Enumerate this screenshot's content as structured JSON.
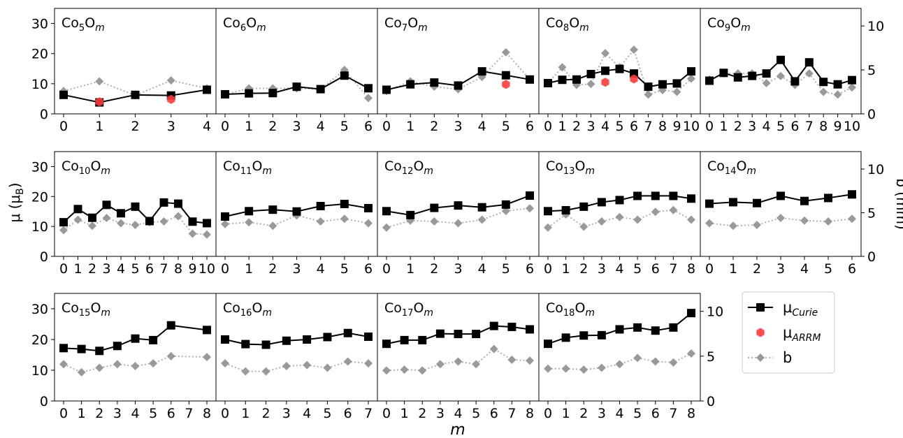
{
  "figure": {
    "xlabel": "m",
    "ylabel_left": "μ (μ",
    "ylabel_left_sub": "B",
    "ylabel_left_close": ")",
    "ylabel_right": "b (mm)"
  },
  "legend": {
    "placement": "right",
    "items": [
      {
        "symbol": "curie",
        "label": "μ",
        "sub": "Curie"
      },
      {
        "symbol": "arrm",
        "label": "μ",
        "sub": "ARRM"
      },
      {
        "symbol": "b",
        "label": "b",
        "sub": ""
      }
    ]
  },
  "colors": {
    "curie": "#000000",
    "arrm": "#ff3b3b",
    "b": "#999999",
    "b_line": "#b0b0b0"
  },
  "axes": {
    "left_ylim": [
      0,
      35
    ],
    "left_ticks": [
      0,
      10,
      20,
      30
    ],
    "right_ylim": [
      0,
      12
    ],
    "right_ticks": [
      0,
      5,
      10
    ]
  },
  "chart_data": [
    {
      "type": "line",
      "title_base": "Co",
      "n": "5",
      "mid": "O",
      "m_sym": "m",
      "x": [
        0,
        1,
        2,
        3,
        4
      ],
      "series": [
        {
          "key": "curie",
          "values": [
            6.3,
            3.8,
            6.3,
            6.1,
            8.0
          ]
        },
        {
          "key": "arrm",
          "points": [
            [
              1,
              4.0
            ],
            [
              3,
              4.8
            ]
          ]
        },
        {
          "key": "b",
          "values": [
            2.6,
            3.7,
            2.1,
            3.8,
            2.9
          ]
        }
      ]
    },
    {
      "type": "line",
      "title_base": "Co",
      "n": "6",
      "mid": "O",
      "m_sym": "m",
      "x": [
        0,
        1,
        2,
        3,
        4,
        5,
        6
      ],
      "series": [
        {
          "key": "curie",
          "values": [
            6.5,
            6.8,
            6.9,
            9.0,
            8.2,
            12.7,
            8.5
          ]
        },
        {
          "key": "b",
          "values": [
            2.2,
            2.9,
            2.9,
            2.9,
            2.8,
            5.0,
            1.8
          ]
        }
      ]
    },
    {
      "type": "line",
      "title_base": "Co",
      "n": "7",
      "mid": "O",
      "m_sym": "m",
      "x": [
        0,
        1,
        2,
        3,
        4,
        5,
        6
      ],
      "series": [
        {
          "key": "curie",
          "values": [
            8.0,
            9.8,
            10.4,
            9.4,
            14.1,
            12.8,
            11.4
          ]
        },
        {
          "key": "arrm",
          "points": [
            [
              5,
              9.8
            ]
          ]
        },
        {
          "key": "b",
          "values": [
            2.6,
            3.7,
            3.1,
            2.8,
            4.2,
            7.0,
            3.9
          ]
        }
      ]
    },
    {
      "type": "line",
      "title_base": "Co",
      "n": "8",
      "mid": "O",
      "m_sym": "m",
      "x": [
        0,
        1,
        2,
        3,
        4,
        5,
        6,
        7,
        8,
        9,
        10
      ],
      "series": [
        {
          "key": "curie",
          "values": [
            10.2,
            11.3,
            11.4,
            13.2,
            14.3,
            14.9,
            13.4,
            9.0,
            9.8,
            10.1,
            14.1
          ]
        },
        {
          "key": "arrm",
          "points": [
            [
              4,
              10.5
            ],
            [
              6,
              11.6
            ]
          ]
        },
        {
          "key": "b",
          "values": [
            3.5,
            5.3,
            3.3,
            3.4,
            6.9,
            5.3,
            7.3,
            2.2,
            2.7,
            2.5,
            4.0
          ]
        }
      ]
    },
    {
      "type": "line",
      "title_base": "Co",
      "n": "9",
      "mid": "O",
      "m_sym": "m",
      "x": [
        0,
        1,
        2,
        3,
        4,
        5,
        6,
        7,
        8,
        9,
        10
      ],
      "series": [
        {
          "key": "curie",
          "values": [
            11.0,
            13.6,
            12.1,
            12.6,
            13.4,
            17.9,
            10.8,
            17.1,
            10.6,
            9.8,
            11.2
          ]
        },
        {
          "key": "b",
          "values": [
            3.9,
            4.6,
            4.6,
            4.6,
            3.5,
            4.3,
            3.3,
            4.6,
            2.5,
            2.2,
            3.0
          ]
        }
      ]
    },
    {
      "type": "line",
      "title_base": "Co",
      "n": "10",
      "mid": "O",
      "m_sym": "m",
      "x": [
        0,
        1,
        2,
        3,
        4,
        5,
        6,
        7,
        8,
        9,
        10
      ],
      "series": [
        {
          "key": "curie",
          "values": [
            11.4,
            15.8,
            12.9,
            17.2,
            14.4,
            16.6,
            11.8,
            18.0,
            17.6,
            11.6,
            11.1
          ]
        },
        {
          "key": "b",
          "values": [
            3.0,
            4.2,
            3.5,
            4.4,
            3.8,
            3.6,
            3.9,
            4.0,
            4.6,
            2.6,
            2.5
          ]
        }
      ]
    },
    {
      "type": "line",
      "title_base": "Co",
      "n": "11",
      "mid": "O",
      "m_sym": "m",
      "x": [
        0,
        1,
        2,
        3,
        4,
        5,
        6
      ],
      "series": [
        {
          "key": "curie",
          "values": [
            13.3,
            15.1,
            15.6,
            15.0,
            16.8,
            17.5,
            16.1
          ]
        },
        {
          "key": "b",
          "values": [
            3.7,
            3.9,
            3.5,
            4.7,
            4.0,
            4.3,
            3.8
          ]
        }
      ]
    },
    {
      "type": "line",
      "title_base": "Co",
      "n": "12",
      "mid": "O",
      "m_sym": "m",
      "x": [
        0,
        1,
        2,
        3,
        4,
        5,
        6
      ],
      "series": [
        {
          "key": "curie",
          "values": [
            15.1,
            13.8,
            16.2,
            17.0,
            16.4,
            17.3,
            20.3
          ]
        },
        {
          "key": "b",
          "values": [
            3.3,
            4.1,
            4.0,
            3.8,
            4.2,
            5.2,
            5.5
          ]
        }
      ]
    },
    {
      "type": "line",
      "title_base": "Co",
      "n": "13",
      "mid": "O",
      "m_sym": "m",
      "x": [
        0,
        1,
        2,
        3,
        4,
        5,
        6,
        7,
        8
      ],
      "series": [
        {
          "key": "curie",
          "values": [
            15.1,
            15.4,
            16.6,
            18.1,
            18.8,
            20.2,
            20.2,
            20.2,
            19.3
          ]
        },
        {
          "key": "b",
          "values": [
            3.3,
            4.8,
            3.4,
            4.0,
            4.5,
            4.2,
            5.1,
            5.3,
            4.2
          ]
        }
      ]
    },
    {
      "type": "line",
      "title_base": "Co",
      "n": "14",
      "mid": "O",
      "m_sym": "m",
      "x": [
        0,
        1,
        2,
        3,
        4,
        5,
        6
      ],
      "series": [
        {
          "key": "curie",
          "values": [
            17.6,
            18.1,
            17.8,
            20.2,
            18.5,
            19.5,
            20.7
          ]
        },
        {
          "key": "b",
          "values": [
            3.8,
            3.5,
            3.6,
            4.4,
            4.1,
            4.0,
            4.3
          ]
        }
      ]
    },
    {
      "type": "line",
      "title_base": "Co",
      "n": "15",
      "mid": "O",
      "m_sym": "m",
      "x": [
        0,
        1,
        2,
        3,
        4,
        5,
        6,
        7,
        8
      ],
      "series": [
        {
          "key": "curie",
          "values": [
            17.2,
            16.9,
            16.3,
            17.9,
            20.3,
            19.8,
            24.6,
            null,
            23.1
          ]
        },
        {
          "key": "b",
          "values": [
            4.1,
            3.2,
            3.7,
            4.1,
            3.9,
            4.2,
            5.0,
            null,
            4.9
          ]
        }
      ]
    },
    {
      "type": "line",
      "title_base": "Co",
      "n": "16",
      "mid": "O",
      "m_sym": "m",
      "x": [
        0,
        1,
        2,
        3,
        4,
        5,
        6,
        7
      ],
      "series": [
        {
          "key": "curie",
          "values": [
            20.0,
            18.5,
            18.3,
            19.6,
            20.0,
            20.8,
            22.1,
            20.9
          ]
        },
        {
          "key": "b",
          "values": [
            4.2,
            3.3,
            3.3,
            3.9,
            4.0,
            3.7,
            4.4,
            4.2
          ]
        }
      ]
    },
    {
      "type": "line",
      "title_base": "Co",
      "n": "17",
      "mid": "O",
      "m_sym": "m",
      "x": [
        0,
        1,
        2,
        3,
        4,
        5,
        6,
        7,
        8
      ],
      "series": [
        {
          "key": "curie",
          "values": [
            18.6,
            19.8,
            19.8,
            21.9,
            21.8,
            21.8,
            24.4,
            24.1,
            23.3
          ]
        },
        {
          "key": "b",
          "values": [
            3.4,
            3.5,
            3.4,
            4.1,
            4.4,
            4.1,
            5.8,
            4.6,
            4.5
          ]
        }
      ]
    },
    {
      "type": "line",
      "title_base": "Co",
      "n": "18",
      "mid": "O",
      "m_sym": "m",
      "x": [
        0,
        1,
        2,
        3,
        4,
        5,
        6,
        7,
        8
      ],
      "series": [
        {
          "key": "curie",
          "values": [
            18.6,
            20.6,
            21.3,
            21.4,
            23.3,
            23.9,
            22.9,
            23.9,
            28.6
          ]
        },
        {
          "key": "b",
          "values": [
            3.6,
            3.6,
            3.5,
            3.7,
            4.1,
            4.8,
            4.4,
            4.3,
            5.3
          ]
        }
      ]
    }
  ]
}
